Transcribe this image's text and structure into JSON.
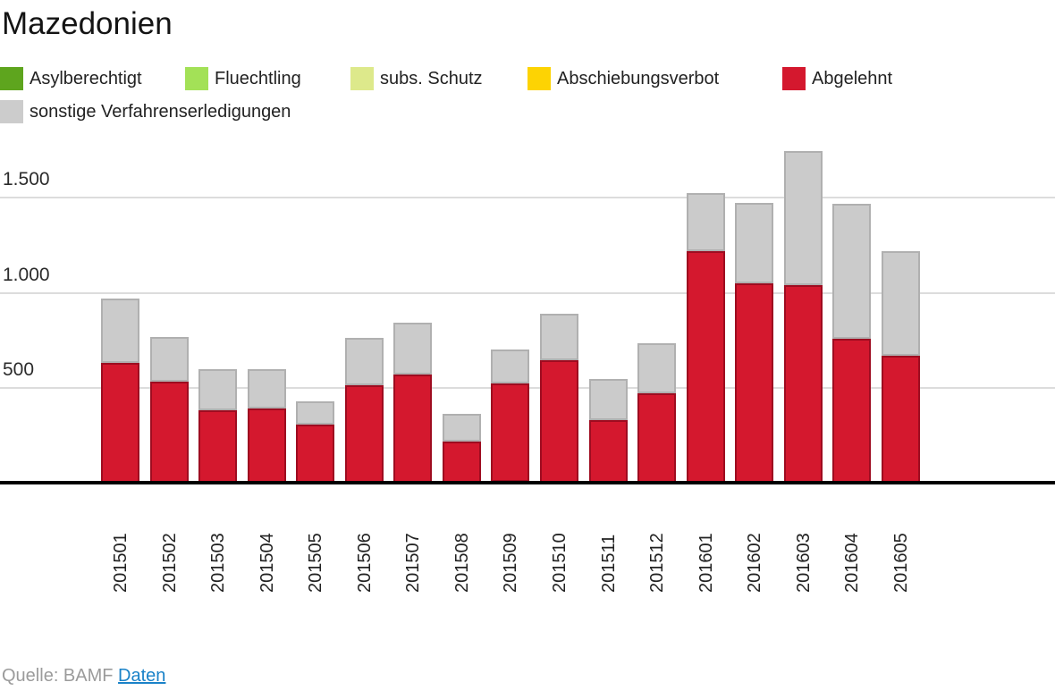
{
  "title": "Mazedonien",
  "legend": {
    "items": [
      {
        "label": "Asylberechtigt",
        "color": "#5ea51e"
      },
      {
        "label": "Fluechtling",
        "color": "#a3e157"
      },
      {
        "label": "subs. Schutz",
        "color": "#dde98b"
      },
      {
        "label": "Abschiebungsverbot",
        "color": "#fdd303"
      },
      {
        "label": "Abgelehnt",
        "color": "#d4182e"
      },
      {
        "label": "sonstige Verfahrenserledigungen",
        "color": "#cccccc"
      }
    ]
  },
  "chart_data": {
    "type": "bar",
    "stacked": true,
    "title": "Mazedonien",
    "grid": "horizontal",
    "legend_position": "top",
    "ylim": [
      0,
      1750
    ],
    "y_ticks": [
      {
        "value": 500,
        "label": "500"
      },
      {
        "value": 1000,
        "label": "1.000"
      },
      {
        "value": 1500,
        "label": "1.500"
      }
    ],
    "categories": [
      "201501",
      "201502",
      "201503",
      "201504",
      "201505",
      "201506",
      "201507",
      "201508",
      "201509",
      "201510",
      "201511",
      "201512",
      "201601",
      "201602",
      "201603",
      "201604",
      "201605"
    ],
    "series": [
      {
        "name": "Asylberechtigt",
        "color": "#5ea51e",
        "border": "#4c8716",
        "values": [
          0,
          0,
          0,
          0,
          0,
          0,
          0,
          0,
          0,
          0,
          0,
          0,
          0,
          0,
          0,
          0,
          0
        ]
      },
      {
        "name": "Fluechtling",
        "color": "#a3e157",
        "border": "#86c23e",
        "values": [
          0,
          0,
          0,
          0,
          0,
          0,
          0,
          0,
          0,
          0,
          0,
          0,
          0,
          0,
          0,
          0,
          0
        ]
      },
      {
        "name": "subs. Schutz",
        "color": "#dde98b",
        "border": "#c2cf6a",
        "values": [
          0,
          0,
          0,
          0,
          0,
          0,
          0,
          0,
          0,
          0,
          0,
          0,
          0,
          0,
          0,
          0,
          0
        ]
      },
      {
        "name": "Abschiebungsverbot",
        "color": "#fdd303",
        "border": "#d8b302",
        "values": [
          0,
          0,
          0,
          0,
          0,
          0,
          0,
          0,
          10,
          0,
          0,
          0,
          0,
          0,
          0,
          0,
          0
        ]
      },
      {
        "name": "Abgelehnt",
        "color": "#d4182e",
        "border": "#9e0c20",
        "values": [
          635,
          535,
          385,
          395,
          310,
          515,
          570,
          220,
          515,
          645,
          335,
          475,
          1220,
          1050,
          1040,
          760,
          670
        ]
      },
      {
        "name": "sonstige Verfahrenserledigungen",
        "color": "#cbcbcb",
        "border": "#b0b0b0",
        "values": [
          335,
          235,
          215,
          205,
          120,
          250,
          275,
          145,
          180,
          245,
          215,
          260,
          305,
          425,
          705,
          710,
          550
        ]
      }
    ]
  },
  "footer": {
    "source_prefix": "Quelle: BAMF",
    "link_label": "Daten"
  }
}
